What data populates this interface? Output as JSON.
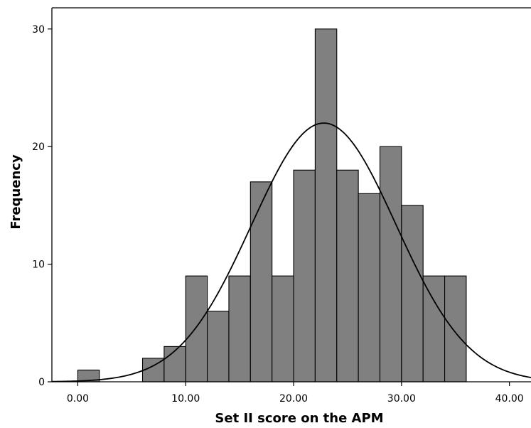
{
  "chart_data": {
    "type": "bar",
    "title": "",
    "xlabel": "Set II score on the APM",
    "ylabel": "Frequency",
    "xlim": [
      -2.4,
      42
    ],
    "ylim": [
      0,
      31.8
    ],
    "x_ticks": [
      0,
      10,
      20,
      30,
      40
    ],
    "x_tick_labels": [
      "0.00",
      "10.00",
      "20.00",
      "30.00",
      "40.00"
    ],
    "y_ticks": [
      0,
      10,
      20,
      30
    ],
    "y_tick_labels": [
      "0",
      "10",
      "20",
      "30"
    ],
    "bin_width": 2,
    "bins": [
      {
        "start": 0,
        "end": 2,
        "count": 1
      },
      {
        "start": 6,
        "end": 8,
        "count": 2
      },
      {
        "start": 8,
        "end": 10,
        "count": 3
      },
      {
        "start": 10,
        "end": 12,
        "count": 9
      },
      {
        "start": 12,
        "end": 14,
        "count": 6
      },
      {
        "start": 14,
        "end": 16,
        "count": 9
      },
      {
        "start": 16,
        "end": 18,
        "count": 17
      },
      {
        "start": 18,
        "end": 20,
        "count": 9
      },
      {
        "start": 20,
        "end": 22,
        "count": 18
      },
      {
        "start": 22,
        "end": 24,
        "count": 30
      },
      {
        "start": 24,
        "end": 26,
        "count": 18
      },
      {
        "start": 26,
        "end": 28,
        "count": 16
      },
      {
        "start": 28,
        "end": 30,
        "count": 20
      },
      {
        "start": 30,
        "end": 32,
        "count": 15
      },
      {
        "start": 32,
        "end": 34,
        "count": 9
      },
      {
        "start": 34,
        "end": 36,
        "count": 9
      }
    ],
    "normal_curve": {
      "mean": 22.8,
      "sd": 6.7,
      "peak": 22.0
    },
    "grid": false,
    "legend": "none",
    "bar_color": "#808080",
    "bar_edge_color": "#000000",
    "curve_color": "#000000"
  }
}
